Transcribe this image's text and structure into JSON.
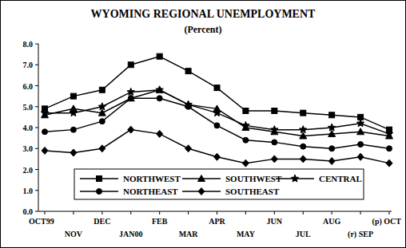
{
  "chart_data": {
    "type": "line",
    "title": "WYOMING REGIONAL UNEMPLOYMENT",
    "subtitle": "(Percent)",
    "categories": [
      "OCT99",
      "NOV",
      "DEC",
      "JAN00",
      "FEB",
      "MAR",
      "APR",
      "MAY",
      "JUN",
      "JUL",
      "AUG",
      "(r) SEP",
      "(p) OCT"
    ],
    "series": [
      {
        "name": "NORTHWEST",
        "color": "#000000",
        "marker": "square",
        "values": [
          4.9,
          5.5,
          5.8,
          7.0,
          7.4,
          6.7,
          5.9,
          4.8,
          4.8,
          4.7,
          4.6,
          4.5,
          3.9
        ]
      },
      {
        "name": "SOUTHWEST",
        "color": "#000000",
        "marker": "triangle",
        "values": [
          4.6,
          4.9,
          4.7,
          5.4,
          5.8,
          5.1,
          4.9,
          4.0,
          3.8,
          3.6,
          3.7,
          3.8,
          3.6
        ]
      },
      {
        "name": "CENTRAL",
        "color": "#000000",
        "marker": "star",
        "values": [
          4.7,
          4.7,
          5.0,
          5.7,
          5.8,
          5.1,
          4.7,
          4.1,
          3.9,
          3.9,
          4.0,
          4.2,
          3.7
        ]
      },
      {
        "name": "NORTHEAST",
        "color": "#000000",
        "marker": "circle",
        "values": [
          3.8,
          3.9,
          4.3,
          5.4,
          5.4,
          5.0,
          4.1,
          3.4,
          3.3,
          3.1,
          3.0,
          3.2,
          3.0
        ]
      },
      {
        "name": "SOUTHEAST",
        "color": "#000000",
        "marker": "diamond",
        "values": [
          2.9,
          2.8,
          3.0,
          3.9,
          3.7,
          3.0,
          2.6,
          2.3,
          2.5,
          2.5,
          2.4,
          2.6,
          2.3
        ]
      }
    ],
    "ylim": [
      0,
      8
    ],
    "yticks": [
      {
        "value": 0,
        "label": "0.0"
      },
      {
        "value": 1,
        "label": "1.0"
      },
      {
        "value": 2,
        "label": "2.0"
      },
      {
        "value": 3,
        "label": "3.0"
      },
      {
        "value": 4,
        "label": "4.0"
      },
      {
        "value": 5,
        "label": "5.0"
      },
      {
        "value": 6,
        "label": "6.0"
      },
      {
        "value": 7,
        "label": "7.0"
      },
      {
        "value": 8,
        "label": "8.0"
      }
    ],
    "grid": false,
    "legend": "bottom"
  }
}
